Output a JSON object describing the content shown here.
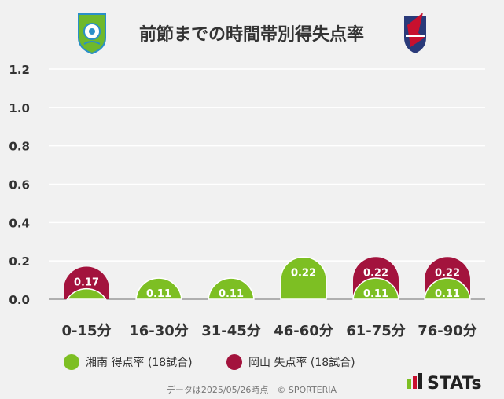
{
  "chart_data": {
    "type": "bar",
    "title": "前節までの時間帯別得失点率",
    "categories": [
      "0-15分",
      "16-30分",
      "31-45分",
      "46-60分",
      "61-75分",
      "76-90分"
    ],
    "series": [
      {
        "name": "湘南 得点率 (18試合)",
        "color": "#7dbf23",
        "values": [
          0.055,
          0.11,
          0.11,
          0.22,
          0.11,
          0.11
        ],
        "labels": [
          "",
          "0.11",
          "0.11",
          "0.22",
          "0.11",
          "0.11"
        ]
      },
      {
        "name": "岡山 失点率 (18試合)",
        "color": "#a3133d",
        "values": [
          0.17,
          0.055,
          0.11,
          0.22,
          0.22,
          0.22
        ],
        "labels": [
          "0.17",
          "",
          "",
          "0.22",
          "0.22",
          "0.22"
        ]
      }
    ],
    "yticks": [
      "0.0",
      "0.2",
      "0.4",
      "0.6",
      "0.8",
      "1.0",
      "1.2"
    ],
    "ylim": [
      0,
      1.2
    ],
    "grid": true,
    "legend": "bottom"
  },
  "footnote": "データは2025/05/26時点　© SPORTERIA",
  "brand": "STATs"
}
